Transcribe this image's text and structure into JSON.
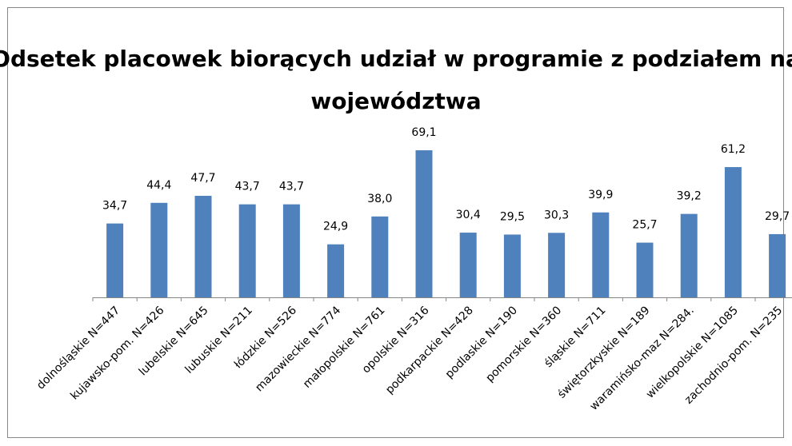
{
  "chart_data": {
    "type": "bar",
    "title": "Odsetek placowek biorących udział w programie z podziałem na województwa",
    "categories": [
      "dolnośląskie N=447",
      "kujawsko-pom. N=426",
      "lubelskie N=645",
      "lubuskie N=211",
      "łódzkie N=526",
      "mazowieckie N=774",
      "małopolskie N=761",
      "opolskie N=316",
      "podkarpackie N=428",
      "podlaskie N=190",
      "pomorskie N=360",
      "śląskie N=711",
      "świętorzkyskie N=189",
      "waramińsko-maz N=284.",
      "wielkopolskie N=1085",
      "zachodnio-pom. N=235"
    ],
    "values": [
      34.7,
      44.4,
      47.7,
      43.7,
      43.7,
      24.9,
      38.0,
      69.1,
      30.4,
      29.5,
      30.3,
      39.9,
      25.7,
      39.2,
      61.2,
      29.7
    ],
    "value_labels": [
      "34,7",
      "44,4",
      "47,7",
      "43,7",
      "43,7",
      "24,9",
      "38,0",
      "69,1",
      "30,4",
      "29,5",
      "30,3",
      "39,9",
      "25,7",
      "39,2",
      "61,2",
      "29,7"
    ],
    "color": "#4f81bd",
    "ylim": [
      0,
      80
    ]
  }
}
